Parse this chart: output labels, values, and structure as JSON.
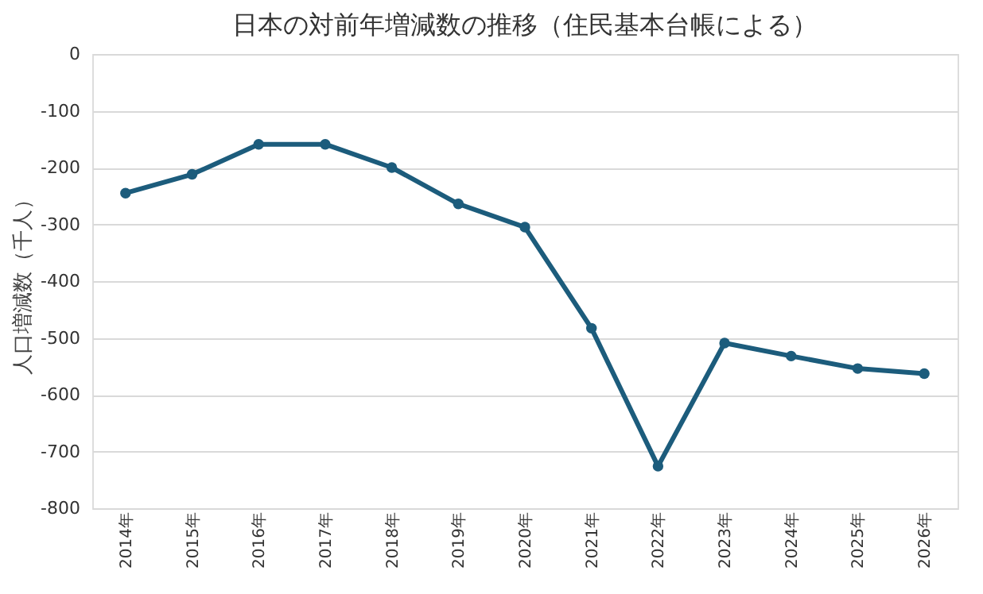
{
  "chart_data": {
    "type": "line",
    "title": "日本の対前年増減数の推移（住民基本台帳による）",
    "ylabel": "人口増減数（千人）",
    "categories": [
      "2014年",
      "2015年",
      "2016年",
      "2017年",
      "2018年",
      "2019年",
      "2020年",
      "2021年",
      "2022年",
      "2023年",
      "2024年",
      "2025年",
      "2026年"
    ],
    "series": [
      {
        "color": "#1c5c7c",
        "values": [
          -245,
          -212,
          -159,
          -159,
          -200,
          -264,
          -305,
          -483,
          -726,
          -509,
          -532,
          -554,
          -563
        ]
      }
    ],
    "ylim": [
      -800,
      0
    ],
    "yticks": [
      -800,
      -700,
      -600,
      -500,
      -400,
      -300,
      -200,
      -100,
      0
    ],
    "grid": "y",
    "marker": "circle",
    "line_style": "solid"
  }
}
